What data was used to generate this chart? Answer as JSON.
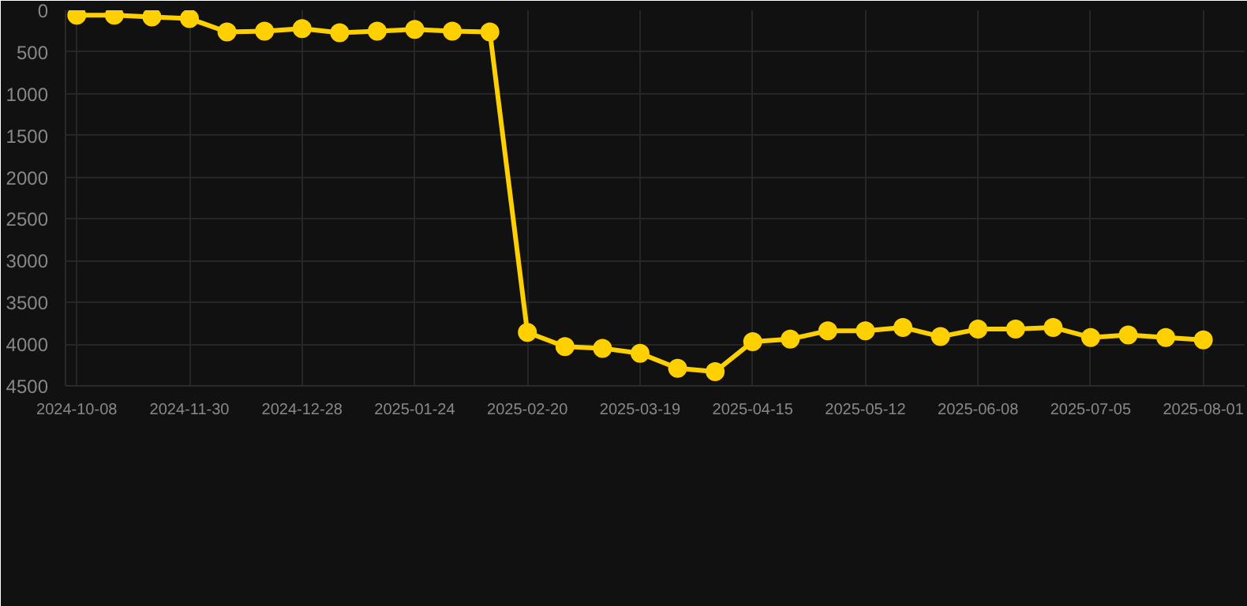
{
  "chart_data": {
    "type": "line",
    "categories": [
      "2024-10-08",
      null,
      null,
      "2024-11-30",
      null,
      null,
      "2024-12-28",
      null,
      null,
      "2025-01-24",
      null,
      null,
      "2025-02-20",
      null,
      null,
      "2025-03-19",
      null,
      null,
      "2025-04-15",
      null,
      null,
      "2025-05-12",
      null,
      null,
      "2025-06-08",
      null,
      null,
      "2025-07-05",
      null,
      null,
      "2025-08-01"
    ],
    "series": [
      {
        "color": "#ffd000",
        "values": [
          60,
          60,
          80,
          100,
          260,
          250,
          220,
          270,
          250,
          230,
          250,
          260,
          3860,
          4030,
          4050,
          4110,
          4290,
          4330,
          3970,
          3940,
          3840,
          3840,
          3800,
          3910,
          3820,
          3820,
          3800,
          3920,
          3890,
          3920,
          3950
        ]
      }
    ],
    "ylim": [
      4500,
      0
    ],
    "yticks": [
      0,
      500,
      1000,
      1500,
      2000,
      2500,
      3000,
      3500,
      4000,
      4500
    ],
    "grid": true,
    "marker": "circle",
    "line_style": "solid"
  }
}
